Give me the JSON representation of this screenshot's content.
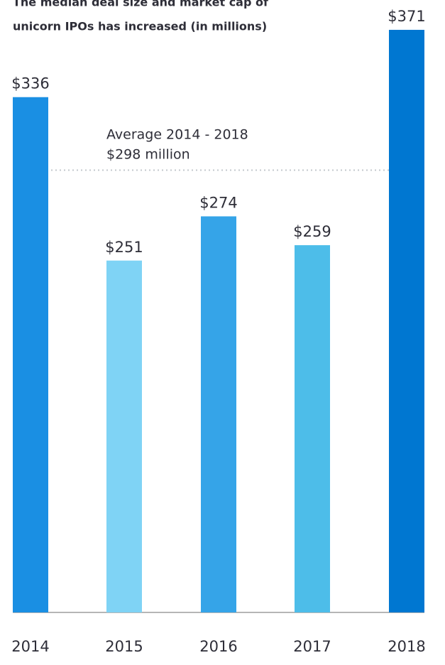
{
  "chart_data": {
    "type": "bar",
    "title": [
      "The median deal size and market cap of",
      "unicorn IPOs has increased (in millions)"
    ],
    "categories": [
      "2014",
      "2015",
      "2016",
      "2017",
      "2018"
    ],
    "values": [
      336,
      251,
      274,
      259,
      371
    ],
    "value_labels": [
      "$336",
      "$251",
      "$274",
      "$259",
      "$371"
    ],
    "colors": [
      "#1a8fe3",
      "#7fd3f5",
      "#35a4e8",
      "#4dbde9",
      "#0077d1"
    ],
    "average": {
      "value": 298,
      "label": [
        "Average 2014 - 2018",
        "$298 million"
      ],
      "color": "#c3c8cd"
    },
    "ylim": [
      68,
      371
    ]
  }
}
